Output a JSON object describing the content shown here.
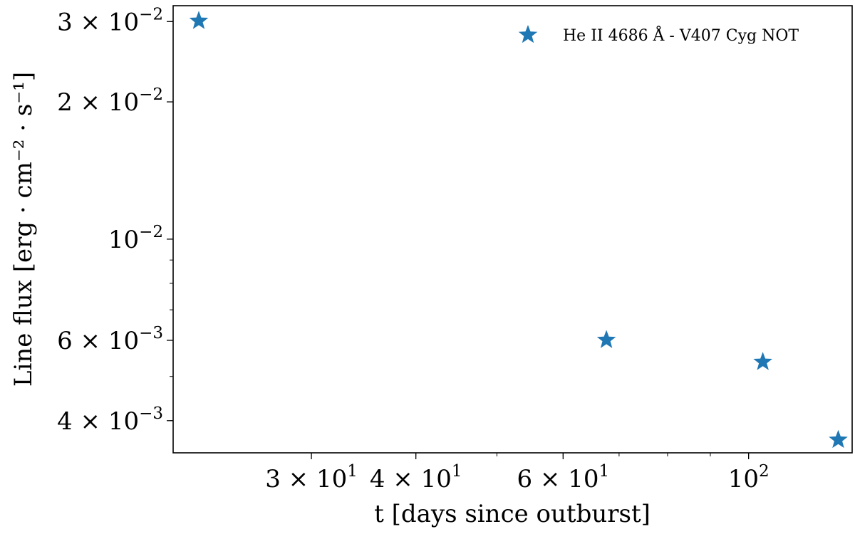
{
  "chart_data": {
    "type": "scatter",
    "title": "",
    "xlabel": "t [days since outburst]",
    "ylabel": "Line flux [erg · cm⁻² · s⁻¹]",
    "xscale": "log",
    "yscale": "log",
    "xlim": [
      20.5,
      133
    ],
    "ylim": [
      0.0034,
      0.0325
    ],
    "grid": false,
    "legend_position": "top-right",
    "x_ticks": [
      {
        "value": 30,
        "mantissa": "3",
        "exp": "1"
      },
      {
        "value": 40,
        "mantissa": "4",
        "exp": "1"
      },
      {
        "value": 60,
        "mantissa": "6",
        "exp": "1"
      },
      {
        "value": 100,
        "mantissa": "",
        "exp": "2"
      }
    ],
    "y_ticks": [
      {
        "value": 0.004,
        "mantissa": "4",
        "exp": "−3"
      },
      {
        "value": 0.006,
        "mantissa": "6",
        "exp": "−3"
      },
      {
        "value": 0.01,
        "mantissa": "",
        "exp": "−2"
      },
      {
        "value": 0.02,
        "mantissa": "2",
        "exp": "−2"
      },
      {
        "value": 0.03,
        "mantissa": "3",
        "exp": "−2"
      }
    ],
    "series": [
      {
        "name": "He II 4686 Å - V407 Cyg NOT",
        "color": "#1f77b4",
        "marker": "star",
        "x": [
          22,
          67.6,
          104,
          128
        ],
        "y": [
          0.0301,
          0.00601,
          0.00538,
          0.00363
        ]
      }
    ]
  }
}
